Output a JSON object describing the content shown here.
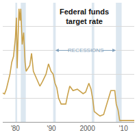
{
  "chart_data": {
    "type": "line",
    "title": "Federal funds\ntarget rate",
    "annotations": [
      "RECESSIONS"
    ],
    "x": [
      1976,
      1977,
      1977.5,
      1978,
      1978.5,
      1979,
      1979.5,
      1980,
      1980.3,
      1980.5,
      1980.8,
      1981,
      1981.3,
      1981.5,
      1981.9,
      1982.3,
      1982.7,
      1983,
      1984,
      1984.5,
      1985,
      1986,
      1986.8,
      1987.5,
      1988.5,
      1989.2,
      1989.9,
      1990.5,
      1991,
      1991.5,
      1992,
      1992.7,
      1994,
      1994.5,
      1995.1,
      1996,
      1997.2,
      1998.8,
      1999.5,
      2000.4,
      2001,
      2001.5,
      2001.9,
      2002.9,
      2003.5,
      2004.5,
      2005.5,
      2006.5,
      2007.6,
      2008,
      2008.5,
      2008.95,
      2013
    ],
    "values": [
      5,
      4.7,
      5.5,
      6.7,
      8,
      10,
      11,
      14,
      17.5,
      9,
      15,
      19,
      17,
      19,
      13,
      15,
      10,
      8.5,
      9.5,
      11.5,
      8.5,
      7,
      6,
      6.75,
      8,
      9.75,
      8.5,
      8,
      6.5,
      5.75,
      4,
      3,
      3,
      4.5,
      6,
      5.25,
      5.5,
      4.75,
      5,
      6.5,
      5.5,
      3.75,
      1.75,
      1.25,
      1,
      1.25,
      3.25,
      5.25,
      5.25,
      3,
      2,
      0.25,
      0.25
    ],
    "color": "#c9a14a",
    "xlim": [
      1976.5,
      2013
    ],
    "xticks": [
      {
        "value": 1980,
        "label": "'80"
      },
      {
        "value": 1990,
        "label": "'90"
      },
      {
        "value": 2000,
        "label": "2000"
      },
      {
        "value": 2010,
        "label": "'10"
      }
    ],
    "ylim": [
      0,
      20
    ],
    "yticks": [
      0,
      4,
      8,
      12,
      16,
      20
    ],
    "grid": true,
    "tick_labels": "x",
    "recessions": [
      [
        1980,
        1980.5
      ],
      [
        1981.5,
        1982.9
      ],
      [
        1990.5,
        1991.2
      ],
      [
        2001.2,
        2001.9
      ],
      [
        2007.9,
        2009.5
      ]
    ]
  }
}
